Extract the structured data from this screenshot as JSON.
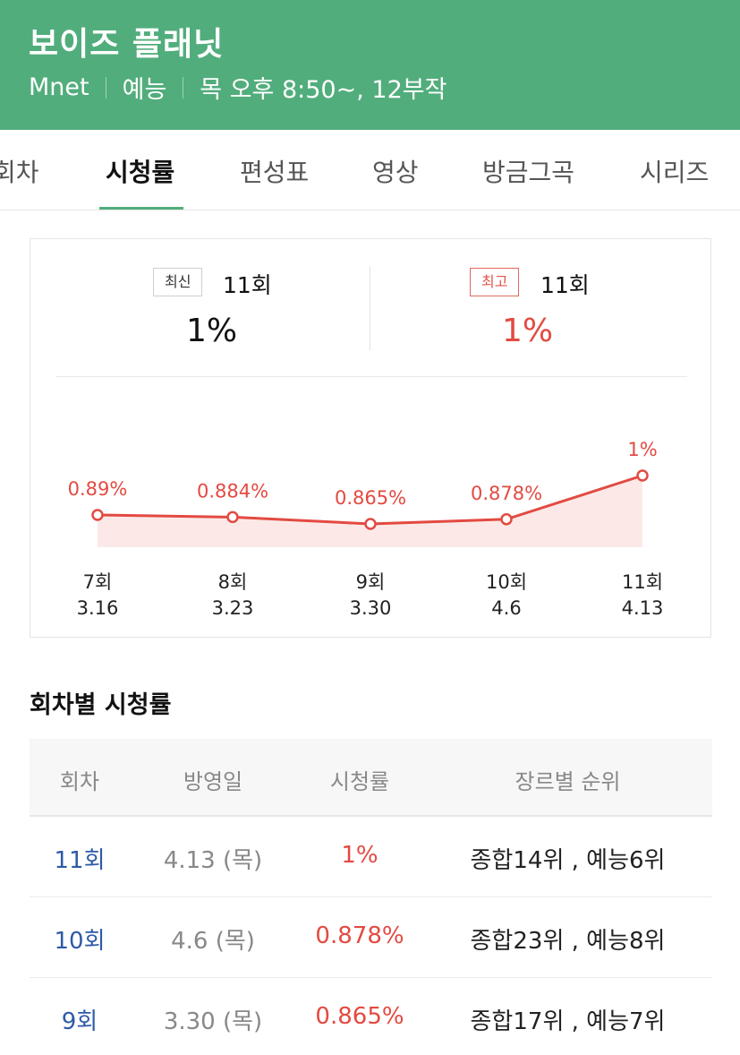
{
  "header": {
    "title": "보이즈 플래닛",
    "channel": "Mnet",
    "genre": "예능",
    "schedule": "목 오후 8:50~, 12부작",
    "color": "#52ad7c"
  },
  "tabs": [
    {
      "label": "회차"
    },
    {
      "label": "시청률",
      "active": true
    },
    {
      "label": "편성표"
    },
    {
      "label": "영상"
    },
    {
      "label": "방금그곡"
    },
    {
      "label": "시리즈"
    }
  ],
  "summary": {
    "latest": {
      "badge": "최신",
      "episode": "11회",
      "rating": "1%"
    },
    "best": {
      "badge": "최고",
      "episode": "11회",
      "rating": "1%"
    }
  },
  "chart_data": {
    "type": "area",
    "categories": [
      "7회",
      "8회",
      "9회",
      "10회",
      "11회"
    ],
    "dates": [
      "3.16",
      "3.23",
      "3.30",
      "4.6",
      "4.13"
    ],
    "values": [
      0.89,
      0.884,
      0.865,
      0.878,
      1
    ],
    "labels": [
      "0.89%",
      "0.884%",
      "0.865%",
      "0.878%",
      "1%"
    ],
    "color": "#e34a42",
    "fill": "#fce9e7"
  },
  "section_title": "회차별 시청률",
  "table": {
    "headers": [
      "회차",
      "방영일",
      "시청률",
      "장르별 순위"
    ],
    "rows": [
      {
        "episode": "11회",
        "date": "4.13 (목)",
        "rating": "1%",
        "rank": "종합14위 , 예능6위"
      },
      {
        "episode": "10회",
        "date": "4.6 (목)",
        "rating": "0.878%",
        "rank": "종합23위 , 예능8위"
      },
      {
        "episode": "9회",
        "date": "3.30 (목)",
        "rating": "0.865%",
        "rank": "종합17위 , 예능7위"
      }
    ]
  }
}
